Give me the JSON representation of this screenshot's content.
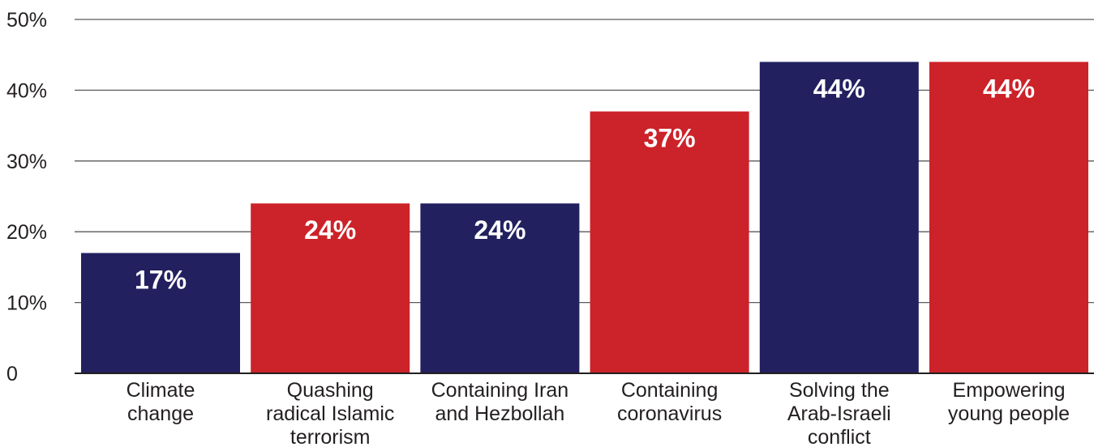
{
  "chart_data": {
    "type": "bar",
    "categories": [
      [
        "Climate",
        "change"
      ],
      [
        "Quashing",
        "radical Islamic",
        "terrorism"
      ],
      [
        "Containing Iran",
        "and Hezbollah"
      ],
      [
        "Containing",
        "coronavirus"
      ],
      [
        "Solving the",
        "Arab-Israeli",
        "conflict"
      ],
      [
        "Empowering",
        "young people"
      ]
    ],
    "values": [
      17,
      24,
      24,
      37,
      44,
      44
    ],
    "value_labels": [
      "17%",
      "24%",
      "24%",
      "37%",
      "44%",
      "44%"
    ],
    "bar_colors": [
      "#232060",
      "#cc2229",
      "#232060",
      "#cc2229",
      "#232060",
      "#cc2229"
    ],
    "yticks": [
      0,
      10,
      20,
      30,
      40,
      50
    ],
    "ytick_labels": [
      "0",
      "10%",
      "20%",
      "30%",
      "40%",
      "50%"
    ],
    "ylim": [
      0,
      50
    ],
    "grid": true,
    "legend": "none",
    "title": "",
    "xlabel": "",
    "ylabel": ""
  },
  "colors": {
    "navy": "#232060",
    "red": "#cc2229",
    "text": "#231f20",
    "grid": "#5a5a5a"
  }
}
